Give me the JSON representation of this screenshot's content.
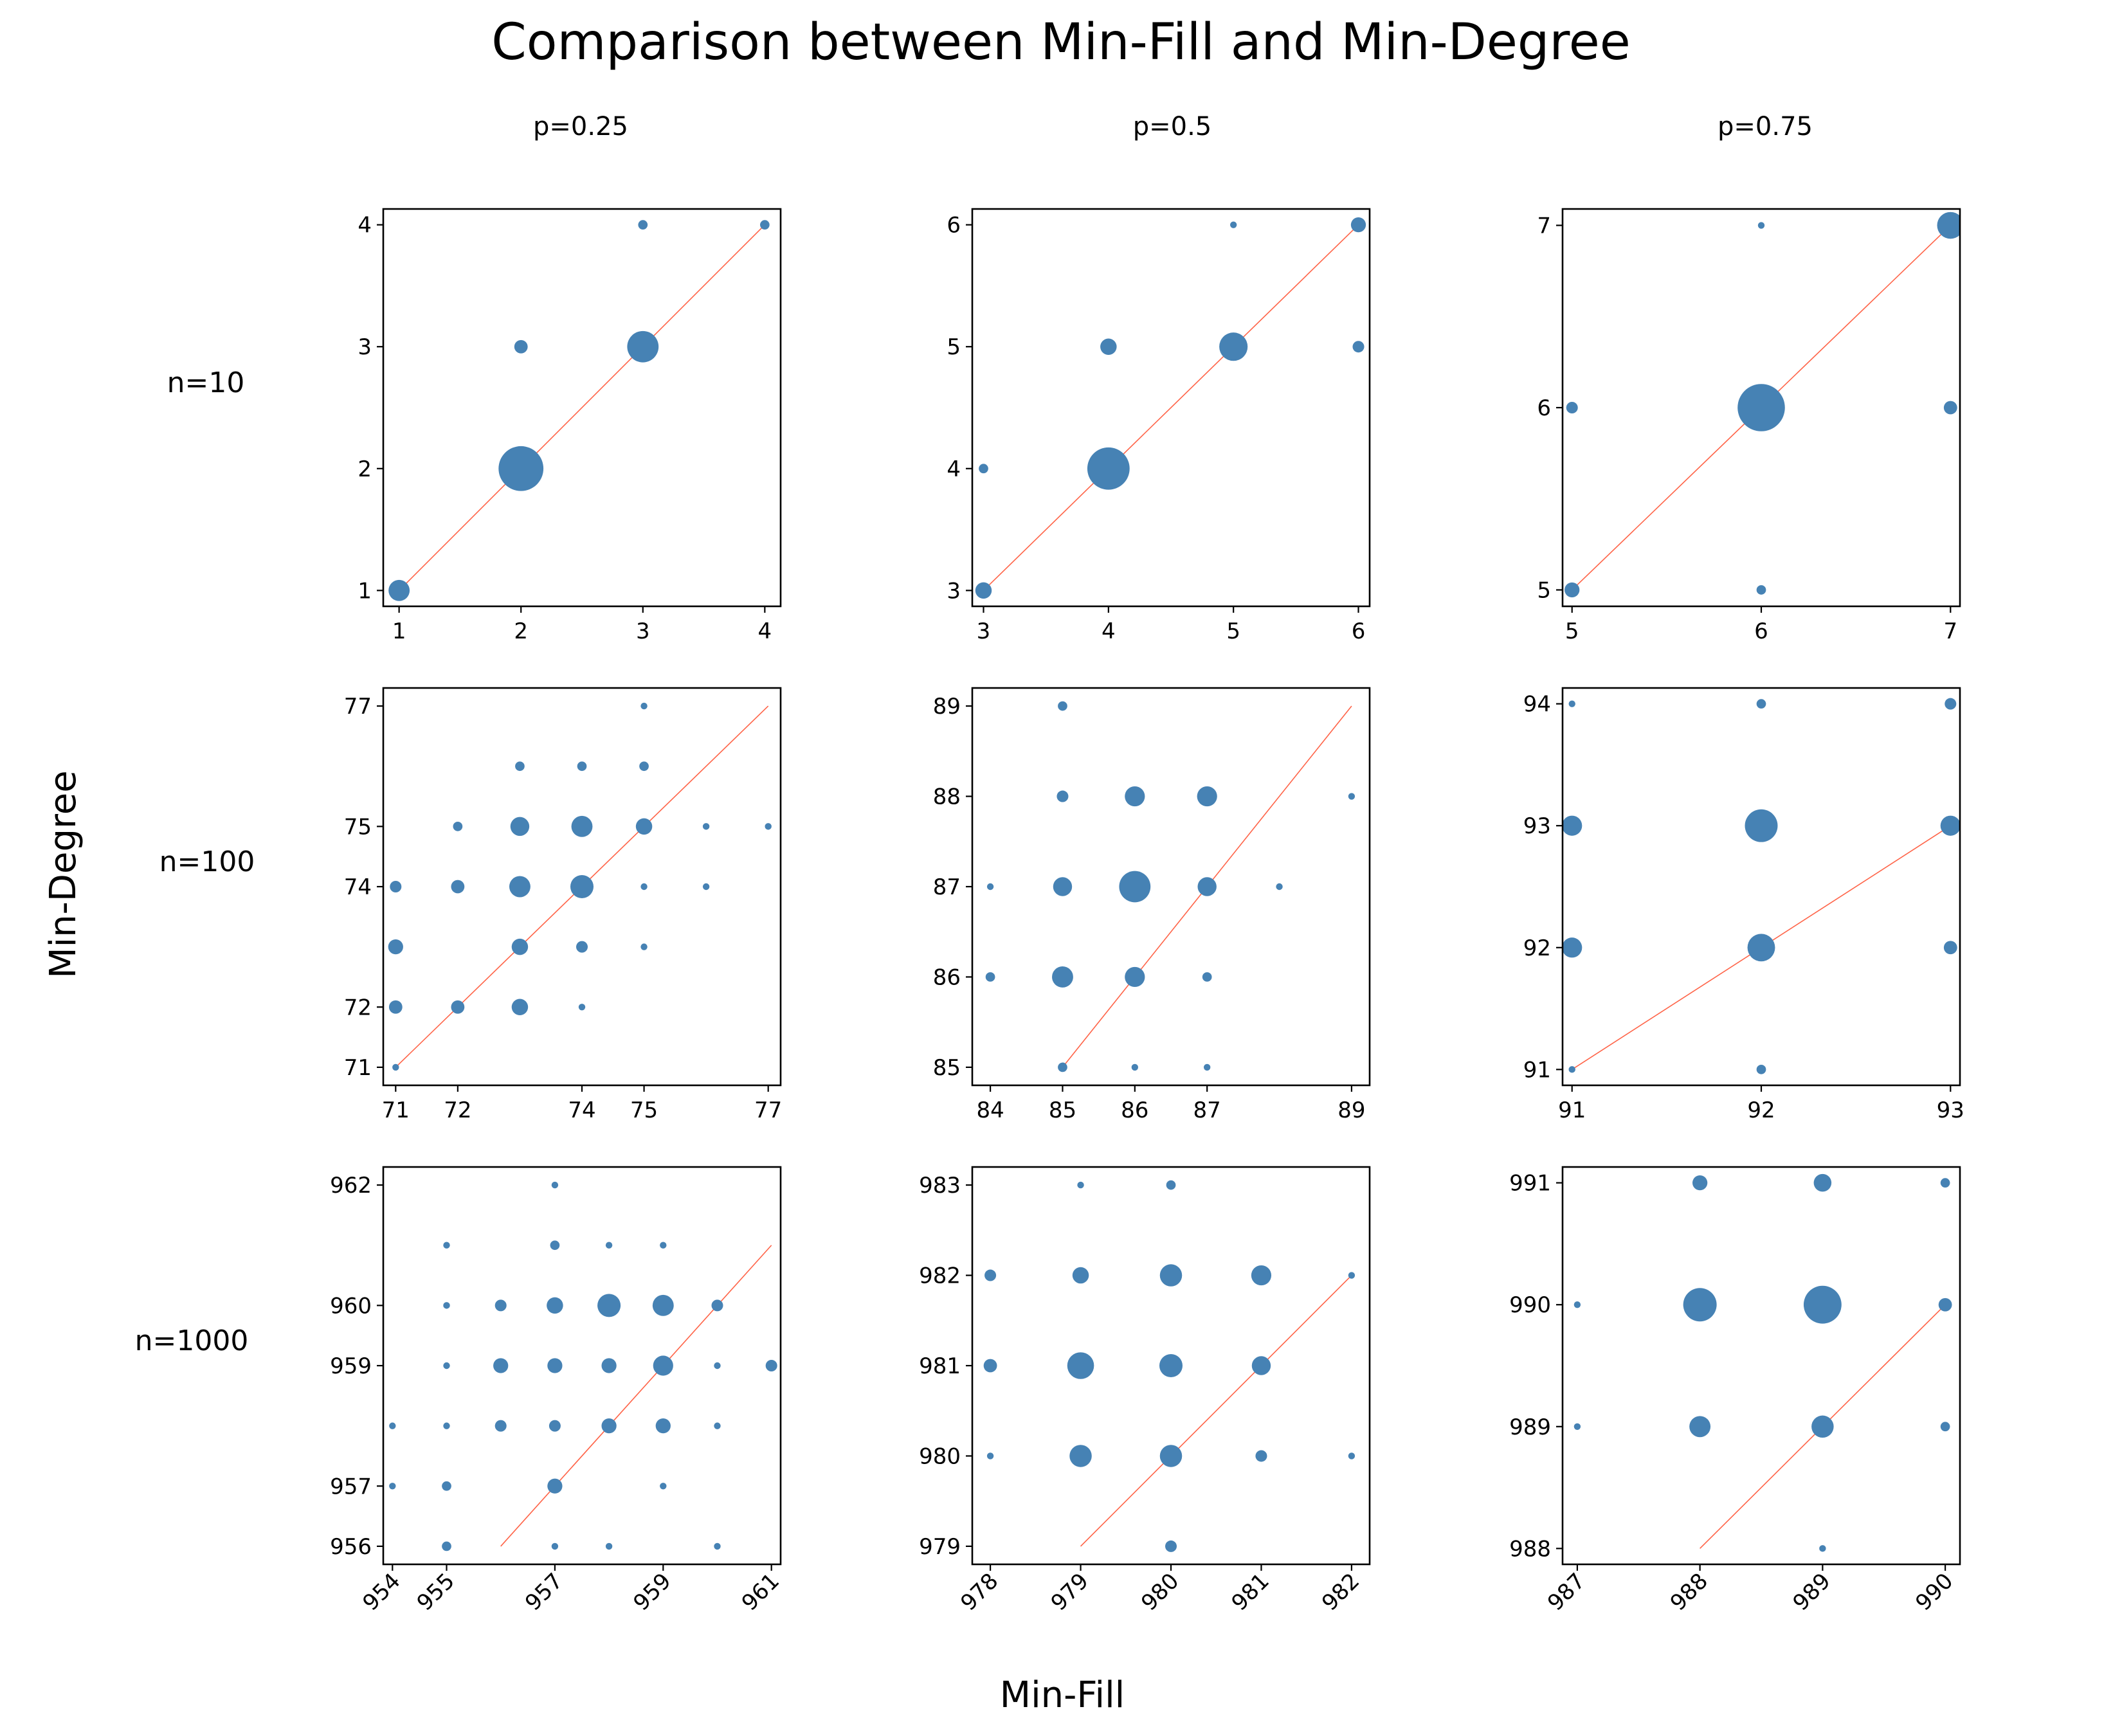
{
  "figure": {
    "title": "Comparison between Min-Fill and Min-Degree",
    "xlabel": "Min-Fill",
    "ylabel": "Min-Degree",
    "column_titles": [
      "p=0.25",
      "p=0.5",
      "p=0.75"
    ],
    "row_titles": [
      "n=10",
      "n=100",
      "n=1000"
    ],
    "colors": {
      "points": "#4682b4",
      "diagonal": "#ff6347"
    }
  },
  "chart_data": [
    {
      "type": "scatter",
      "row": "n=10",
      "col": "p=0.25",
      "xlim": [
        0.87,
        4.13
      ],
      "ylim": [
        0.87,
        4.13
      ],
      "xticks": [
        1,
        2,
        3,
        4
      ],
      "yticks": [
        1,
        2,
        3,
        4
      ],
      "rotate_xticks": false,
      "diagonal": [
        1,
        4
      ],
      "points": [
        [
          1,
          1,
          10
        ],
        [
          2,
          2,
          45
        ],
        [
          3,
          3,
          22
        ],
        [
          2,
          3,
          4
        ],
        [
          3,
          4,
          2
        ],
        [
          4,
          4,
          2
        ]
      ]
    },
    {
      "type": "scatter",
      "row": "n=10",
      "col": "p=0.5",
      "xlim": [
        2.91,
        6.09
      ],
      "ylim": [
        2.87,
        6.13
      ],
      "xticks": [
        3,
        4,
        5,
        6
      ],
      "yticks": [
        3,
        4,
        5,
        6
      ],
      "rotate_xticks": false,
      "diagonal": [
        3,
        6
      ],
      "points": [
        [
          3,
          3,
          6
        ],
        [
          3,
          4,
          2
        ],
        [
          4,
          4,
          40
        ],
        [
          4,
          5,
          6
        ],
        [
          5,
          5,
          18
        ],
        [
          5,
          6,
          1
        ],
        [
          6,
          6,
          5
        ],
        [
          6,
          5,
          3
        ]
      ]
    },
    {
      "type": "scatter",
      "row": "n=10",
      "col": "p=0.75",
      "xlim": [
        4.95,
        7.05
      ],
      "ylim": [
        4.91,
        7.09
      ],
      "xticks": [
        5,
        6,
        7
      ],
      "yticks": [
        5,
        6,
        7
      ],
      "rotate_xticks": false,
      "diagonal": [
        5,
        7
      ],
      "points": [
        [
          5,
          5,
          5
        ],
        [
          5,
          6,
          3
        ],
        [
          6,
          5,
          2
        ],
        [
          6,
          6,
          50
        ],
        [
          6,
          7,
          1
        ],
        [
          7,
          6,
          4
        ],
        [
          7,
          7,
          16
        ]
      ]
    },
    {
      "type": "scatter",
      "row": "n=100",
      "col": "p=0.25",
      "xlim": [
        70.8,
        77.2
      ],
      "ylim": [
        70.7,
        77.3
      ],
      "xticks": [
        71,
        72,
        74,
        75,
        77
      ],
      "yticks": [
        71,
        72,
        74,
        75,
        77
      ],
      "rotate_xticks": false,
      "diagonal": [
        71,
        77
      ],
      "points": [
        [
          71,
          71,
          1
        ],
        [
          71,
          72,
          4
        ],
        [
          71,
          73,
          5
        ],
        [
          71,
          74,
          3
        ],
        [
          72,
          72,
          4
        ],
        [
          72,
          74,
          4
        ],
        [
          72,
          75,
          2
        ],
        [
          73,
          72,
          6
        ],
        [
          73,
          73,
          6
        ],
        [
          73,
          74,
          10
        ],
        [
          73,
          75,
          8
        ],
        [
          73,
          76,
          2
        ],
        [
          74,
          72,
          1
        ],
        [
          74,
          73,
          3
        ],
        [
          74,
          74,
          12
        ],
        [
          74,
          75,
          10
        ],
        [
          74,
          76,
          2
        ],
        [
          75,
          73,
          1
        ],
        [
          75,
          74,
          1
        ],
        [
          75,
          75,
          6
        ],
        [
          75,
          76,
          2
        ],
        [
          75,
          77,
          1
        ],
        [
          76,
          74,
          1
        ],
        [
          76,
          75,
          1
        ],
        [
          77,
          75,
          1
        ]
      ]
    },
    {
      "type": "scatter",
      "row": "n=100",
      "col": "p=0.5",
      "xlim": [
        83.75,
        89.25
      ],
      "ylim": [
        84.8,
        89.2
      ],
      "xticks": [
        84,
        85,
        86,
        87,
        89
      ],
      "yticks": [
        85,
        86,
        87,
        88,
        89
      ],
      "rotate_xticks": false,
      "diagonal": [
        85,
        89
      ],
      "points": [
        [
          84,
          86,
          2
        ],
        [
          84,
          87,
          1
        ],
        [
          85,
          85,
          2
        ],
        [
          85,
          86,
          10
        ],
        [
          85,
          87,
          8
        ],
        [
          85,
          88,
          3
        ],
        [
          85,
          89,
          2
        ],
        [
          86,
          85,
          1
        ],
        [
          86,
          86,
          9
        ],
        [
          86,
          87,
          22
        ],
        [
          86,
          88,
          9
        ],
        [
          87,
          85,
          1
        ],
        [
          87,
          86,
          2
        ],
        [
          87,
          87,
          8
        ],
        [
          87,
          88,
          9
        ],
        [
          88,
          87,
          1
        ],
        [
          89,
          88,
          1
        ]
      ]
    },
    {
      "type": "scatter",
      "row": "n=100",
      "col": "p=0.75",
      "xlim": [
        90.95,
        93.05
      ],
      "ylim": [
        90.87,
        94.13
      ],
      "xticks": [
        91,
        92,
        93
      ],
      "yticks": [
        91,
        92,
        93,
        94
      ],
      "rotate_xticks": false,
      "diagonal": [
        91,
        93
      ],
      "points": [
        [
          91,
          91,
          1
        ],
        [
          91,
          92,
          9
        ],
        [
          91,
          93,
          9
        ],
        [
          91,
          94,
          1
        ],
        [
          92,
          91,
          2
        ],
        [
          92,
          92,
          17
        ],
        [
          92,
          93,
          24
        ],
        [
          92,
          94,
          2
        ],
        [
          93,
          92,
          4
        ],
        [
          93,
          93,
          9
        ],
        [
          93,
          94,
          3
        ]
      ]
    },
    {
      "type": "scatter",
      "row": "n=1000",
      "col": "p=0.25",
      "xlim": [
        953.83,
        961.17
      ],
      "ylim": [
        955.7,
        962.3
      ],
      "xticks": [
        954,
        955,
        957,
        959,
        961
      ],
      "yticks": [
        956,
        957,
        959,
        960,
        962
      ],
      "rotate_xticks": true,
      "diagonal": [
        956,
        961
      ],
      "points": [
        [
          954,
          957,
          1
        ],
        [
          954,
          958,
          1
        ],
        [
          955,
          956,
          2
        ],
        [
          955,
          957,
          2
        ],
        [
          955,
          958,
          1
        ],
        [
          955,
          959,
          1
        ],
        [
          955,
          960,
          1
        ],
        [
          955,
          961,
          1
        ],
        [
          956,
          958,
          3
        ],
        [
          956,
          959,
          5
        ],
        [
          956,
          960,
          3
        ],
        [
          957,
          956,
          1
        ],
        [
          957,
          957,
          5
        ],
        [
          957,
          958,
          3
        ],
        [
          957,
          959,
          5
        ],
        [
          957,
          960,
          6
        ],
        [
          957,
          961,
          2
        ],
        [
          957,
          962,
          1
        ],
        [
          958,
          956,
          1
        ],
        [
          958,
          958,
          5
        ],
        [
          958,
          959,
          5
        ],
        [
          958,
          960,
          12
        ],
        [
          958,
          961,
          1
        ],
        [
          959,
          957,
          1
        ],
        [
          959,
          958,
          5
        ],
        [
          959,
          959,
          9
        ],
        [
          959,
          960,
          10
        ],
        [
          959,
          961,
          1
        ],
        [
          960,
          956,
          1
        ],
        [
          960,
          958,
          1
        ],
        [
          960,
          959,
          1
        ],
        [
          960,
          960,
          3
        ],
        [
          961,
          959,
          3
        ]
      ]
    },
    {
      "type": "scatter",
      "row": "n=1000",
      "col": "p=0.5",
      "xlim": [
        977.8,
        982.2
      ],
      "ylim": [
        978.8,
        983.2
      ],
      "xticks": [
        978,
        979,
        980,
        981,
        982
      ],
      "yticks": [
        979,
        980,
        981,
        982,
        983
      ],
      "rotate_xticks": true,
      "diagonal": [
        979,
        982
      ],
      "points": [
        [
          978,
          980,
          1
        ],
        [
          978,
          981,
          4
        ],
        [
          978,
          982,
          3
        ],
        [
          979,
          980,
          11
        ],
        [
          979,
          981,
          16
        ],
        [
          979,
          982,
          6
        ],
        [
          979,
          983,
          1
        ],
        [
          980,
          979,
          3
        ],
        [
          980,
          980,
          11
        ],
        [
          980,
          981,
          12
        ],
        [
          980,
          982,
          11
        ],
        [
          980,
          983,
          2
        ],
        [
          981,
          980,
          3
        ],
        [
          981,
          981,
          8
        ],
        [
          981,
          982,
          9
        ],
        [
          982,
          980,
          1
        ],
        [
          982,
          982,
          1
        ]
      ]
    },
    {
      "type": "scatter",
      "row": "n=1000",
      "col": "p=0.75",
      "xlim": [
        986.88,
        990.12
      ],
      "ylim": [
        987.87,
        991.13
      ],
      "xticks": [
        987,
        988,
        989,
        990
      ],
      "yticks": [
        988,
        989,
        990,
        991
      ],
      "rotate_xticks": true,
      "diagonal": [
        988,
        990
      ],
      "points": [
        [
          987,
          989,
          1
        ],
        [
          987,
          990,
          1
        ],
        [
          988,
          989,
          10
        ],
        [
          988,
          990,
          25
        ],
        [
          988,
          991,
          5
        ],
        [
          989,
          988,
          1
        ],
        [
          989,
          989,
          11
        ],
        [
          989,
          990,
          32
        ],
        [
          989,
          991,
          7
        ],
        [
          990,
          989,
          2
        ],
        [
          990,
          990,
          4
        ],
        [
          990,
          991,
          2
        ]
      ]
    }
  ]
}
